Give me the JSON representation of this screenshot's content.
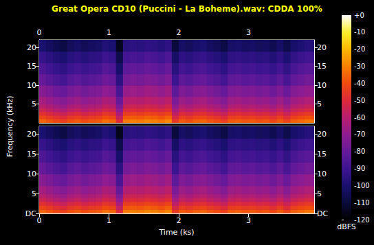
{
  "chart_data": {
    "type": "heatmap",
    "title": "Great Opera CD10 (Puccini - La Boheme).wav: CDDA 100%",
    "x_label": "Time (ks)",
    "y_label": "Frequency (kHz)",
    "xlim": [
      0,
      3.94
    ],
    "xticks": [
      0,
      1,
      2,
      3
    ],
    "ylim": [
      0,
      22.05
    ],
    "time_bins": [
      0,
      0.1,
      0.2,
      0.3,
      0.4,
      0.5,
      0.6,
      0.7,
      0.8,
      0.9,
      1.0,
      1.1,
      1.2,
      1.3,
      1.4,
      1.5,
      1.6,
      1.7,
      1.8,
      1.9,
      2.0,
      2.1,
      2.2,
      2.3,
      2.4,
      2.5,
      2.6,
      2.7,
      2.8,
      2.9,
      3.0,
      3.1,
      3.2,
      3.3,
      3.4,
      3.5,
      3.6,
      3.7,
      3.8,
      3.9,
      3.94
    ],
    "freq_bins": [
      0,
      1,
      2,
      3,
      4,
      5,
      7,
      10,
      13,
      16,
      19,
      22.05
    ],
    "panels": [
      {
        "yticks": [
          5,
          10,
          15,
          20
        ],
        "cells": [
          [
            -35,
            -38,
            -41,
            -43,
            -39,
            -37,
            -40,
            -38,
            -37,
            -33,
            -35,
            -50,
            -31,
            -30,
            -31,
            -29,
            -30,
            -32,
            -29,
            -45,
            -37,
            -39,
            -36,
            -35,
            -38,
            -40,
            -43,
            -37,
            -36,
            -38,
            -37,
            -39,
            -38,
            -41,
            -37,
            -42,
            -36,
            -34,
            -32,
            -33
          ],
          [
            -42,
            -45,
            -48,
            -50,
            -46,
            -44,
            -47,
            -45,
            -44,
            -40,
            -42,
            -57,
            -38,
            -37,
            -38,
            -36,
            -37,
            -39,
            -36,
            -52,
            -44,
            -46,
            -43,
            -42,
            -45,
            -47,
            -50,
            -44,
            -43,
            -45,
            -44,
            -46,
            -45,
            -48,
            -44,
            -49,
            -43,
            -41,
            -39,
            -40
          ],
          [
            -48,
            -51,
            -54,
            -56,
            -52,
            -50,
            -53,
            -51,
            -50,
            -46,
            -48,
            -63,
            -44,
            -43,
            -44,
            -42,
            -43,
            -45,
            -42,
            -58,
            -50,
            -52,
            -49,
            -48,
            -51,
            -53,
            -56,
            -50,
            -49,
            -51,
            -50,
            -52,
            -51,
            -54,
            -50,
            -55,
            -49,
            -47,
            -45,
            -46
          ],
          [
            -55,
            -58,
            -61,
            -63,
            -59,
            -57,
            -60,
            -58,
            -57,
            -53,
            -55,
            -70,
            -51,
            -50,
            -51,
            -49,
            -50,
            -52,
            -49,
            -65,
            -57,
            -59,
            -56,
            -55,
            -58,
            -60,
            -63,
            -57,
            -56,
            -58,
            -57,
            -59,
            -58,
            -61,
            -57,
            -62,
            -56,
            -54,
            -52,
            -53
          ],
          [
            -60,
            -63,
            -66,
            -68,
            -64,
            -62,
            -65,
            -63,
            -62,
            -58,
            -60,
            -75,
            -56,
            -55,
            -56,
            -54,
            -55,
            -57,
            -54,
            -70,
            -62,
            -64,
            -61,
            -60,
            -63,
            -65,
            -68,
            -62,
            -61,
            -63,
            -62,
            -64,
            -63,
            -66,
            -62,
            -67,
            -61,
            -59,
            -57,
            -58
          ],
          [
            -65,
            -68,
            -71,
            -73,
            -69,
            -67,
            -70,
            -68,
            -67,
            -63,
            -65,
            -80,
            -61,
            -60,
            -61,
            -59,
            -60,
            -62,
            -59,
            -75,
            -67,
            -69,
            -66,
            -65,
            -68,
            -70,
            -73,
            -67,
            -66,
            -68,
            -67,
            -69,
            -68,
            -71,
            -67,
            -72,
            -66,
            -64,
            -62,
            -63
          ],
          [
            -72,
            -75,
            -78,
            -80,
            -76,
            -74,
            -77,
            -75,
            -74,
            -70,
            -72,
            -87,
            -68,
            -67,
            -68,
            -66,
            -67,
            -69,
            -66,
            -82,
            -74,
            -76,
            -73,
            -72,
            -75,
            -77,
            -80,
            -74,
            -73,
            -75,
            -74,
            -76,
            -75,
            -78,
            -74,
            -79,
            -73,
            -71,
            -69,
            -70
          ],
          [
            -80,
            -83,
            -86,
            -88,
            -84,
            -82,
            -85,
            -83,
            -82,
            -78,
            -80,
            -95,
            -76,
            -75,
            -76,
            -74,
            -75,
            -77,
            -74,
            -90,
            -82,
            -84,
            -81,
            -80,
            -83,
            -85,
            -88,
            -82,
            -81,
            -83,
            -82,
            -84,
            -83,
            -86,
            -82,
            -87,
            -81,
            -79,
            -77,
            -78
          ],
          [
            -86,
            -89,
            -92,
            -94,
            -90,
            -88,
            -91,
            -89,
            -88,
            -84,
            -86,
            -101,
            -82,
            -81,
            -82,
            -80,
            -81,
            -83,
            -80,
            -96,
            -88,
            -90,
            -87,
            -86,
            -89,
            -91,
            -94,
            -88,
            -87,
            -89,
            -88,
            -90,
            -89,
            -92,
            -88,
            -93,
            -87,
            -85,
            -83,
            -84
          ],
          [
            -92,
            -95,
            -98,
            -100,
            -96,
            -94,
            -97,
            -95,
            -94,
            -90,
            -92,
            -107,
            -88,
            -87,
            -88,
            -86,
            -87,
            -89,
            -86,
            -102,
            -94,
            -96,
            -93,
            -92,
            -95,
            -97,
            -100,
            -94,
            -93,
            -95,
            -94,
            -96,
            -95,
            -98,
            -94,
            -99,
            -93,
            -91,
            -89,
            -90
          ],
          [
            -100,
            -103,
            -106,
            -108,
            -104,
            -102,
            -105,
            -103,
            -102,
            -98,
            -100,
            -115,
            -96,
            -95,
            -96,
            -94,
            -95,
            -97,
            -94,
            -110,
            -102,
            -104,
            -101,
            -100,
            -103,
            -105,
            -108,
            -102,
            -101,
            -103,
            -102,
            -104,
            -103,
            -106,
            -102,
            -107,
            -101,
            -99,
            -97,
            -98
          ]
        ]
      },
      {
        "yticks": [
          {
            "value": 0,
            "label": "DC"
          },
          5,
          10,
          15,
          20
        ],
        "cells": [
          [
            -35,
            -38,
            -41,
            -43,
            -39,
            -37,
            -40,
            -38,
            -37,
            -33,
            -35,
            -50,
            -31,
            -30,
            -31,
            -29,
            -30,
            -32,
            -29,
            -45,
            -37,
            -39,
            -36,
            -35,
            -38,
            -40,
            -43,
            -37,
            -36,
            -38,
            -37,
            -39,
            -38,
            -41,
            -37,
            -42,
            -36,
            -34,
            -32,
            -33
          ],
          [
            -42,
            -45,
            -48,
            -50,
            -46,
            -44,
            -47,
            -45,
            -44,
            -40,
            -42,
            -57,
            -38,
            -37,
            -38,
            -36,
            -37,
            -39,
            -36,
            -52,
            -44,
            -46,
            -43,
            -42,
            -45,
            -47,
            -50,
            -44,
            -43,
            -45,
            -44,
            -46,
            -45,
            -48,
            -44,
            -49,
            -43,
            -41,
            -39,
            -40
          ],
          [
            -48,
            -51,
            -54,
            -56,
            -52,
            -50,
            -53,
            -51,
            -50,
            -46,
            -48,
            -63,
            -44,
            -43,
            -44,
            -42,
            -43,
            -45,
            -42,
            -58,
            -50,
            -52,
            -49,
            -48,
            -51,
            -53,
            -56,
            -50,
            -49,
            -51,
            -50,
            -52,
            -51,
            -54,
            -50,
            -55,
            -49,
            -47,
            -45,
            -46
          ],
          [
            -55,
            -58,
            -61,
            -63,
            -59,
            -57,
            -60,
            -58,
            -57,
            -53,
            -55,
            -70,
            -51,
            -50,
            -51,
            -49,
            -50,
            -52,
            -49,
            -65,
            -57,
            -59,
            -56,
            -55,
            -58,
            -60,
            -63,
            -57,
            -56,
            -58,
            -57,
            -59,
            -58,
            -61,
            -57,
            -62,
            -56,
            -54,
            -52,
            -53
          ],
          [
            -60,
            -63,
            -66,
            -68,
            -64,
            -62,
            -65,
            -63,
            -62,
            -58,
            -60,
            -75,
            -56,
            -55,
            -56,
            -54,
            -55,
            -57,
            -54,
            -70,
            -62,
            -64,
            -61,
            -60,
            -63,
            -65,
            -68,
            -62,
            -61,
            -63,
            -62,
            -64,
            -63,
            -66,
            -62,
            -67,
            -61,
            -59,
            -57,
            -58
          ],
          [
            -65,
            -68,
            -71,
            -73,
            -69,
            -67,
            -70,
            -68,
            -67,
            -63,
            -65,
            -80,
            -61,
            -60,
            -61,
            -59,
            -60,
            -62,
            -59,
            -75,
            -67,
            -69,
            -66,
            -65,
            -68,
            -70,
            -73,
            -67,
            -66,
            -68,
            -67,
            -69,
            -68,
            -71,
            -67,
            -72,
            -66,
            -64,
            -62,
            -63
          ],
          [
            -72,
            -75,
            -78,
            -80,
            -76,
            -74,
            -77,
            -75,
            -74,
            -70,
            -72,
            -87,
            -68,
            -67,
            -68,
            -66,
            -67,
            -69,
            -66,
            -82,
            -74,
            -76,
            -73,
            -72,
            -75,
            -77,
            -80,
            -74,
            -73,
            -75,
            -74,
            -76,
            -75,
            -78,
            -74,
            -79,
            -73,
            -71,
            -69,
            -70
          ],
          [
            -80,
            -83,
            -86,
            -88,
            -84,
            -82,
            -85,
            -83,
            -82,
            -78,
            -80,
            -95,
            -76,
            -75,
            -76,
            -74,
            -75,
            -77,
            -74,
            -90,
            -82,
            -84,
            -81,
            -80,
            -83,
            -85,
            -88,
            -82,
            -81,
            -83,
            -82,
            -84,
            -83,
            -86,
            -82,
            -87,
            -81,
            -79,
            -77,
            -78
          ],
          [
            -86,
            -89,
            -92,
            -94,
            -90,
            -88,
            -91,
            -89,
            -88,
            -84,
            -86,
            -101,
            -82,
            -81,
            -82,
            -80,
            -81,
            -83,
            -80,
            -96,
            -88,
            -90,
            -87,
            -86,
            -89,
            -91,
            -94,
            -88,
            -87,
            -89,
            -88,
            -90,
            -89,
            -92,
            -88,
            -93,
            -87,
            -85,
            -83,
            -84
          ],
          [
            -92,
            -95,
            -98,
            -100,
            -96,
            -94,
            -97,
            -95,
            -94,
            -90,
            -92,
            -107,
            -88,
            -87,
            -88,
            -86,
            -87,
            -89,
            -86,
            -102,
            -94,
            -96,
            -93,
            -92,
            -95,
            -97,
            -100,
            -94,
            -93,
            -95,
            -94,
            -96,
            -95,
            -98,
            -94,
            -99,
            -93,
            -91,
            -89,
            -90
          ],
          [
            -100,
            -103,
            -106,
            -108,
            -104,
            -102,
            -105,
            -103,
            -102,
            -98,
            -100,
            -115,
            -96,
            -95,
            -96,
            -94,
            -95,
            -97,
            -94,
            -110,
            -102,
            -104,
            -101,
            -100,
            -103,
            -105,
            -108,
            -102,
            -101,
            -103,
            -102,
            -104,
            -103,
            -106,
            -102,
            -107,
            -101,
            -99,
            -97,
            -98
          ]
        ]
      }
    ],
    "colorbar": {
      "label": "dBFS",
      "range": [
        -120,
        0
      ],
      "ticks": [
        {
          "value": 0,
          "label": "+0"
        },
        -10,
        -20,
        -30,
        -40,
        -50,
        -60,
        -70,
        -80,
        -90,
        -100,
        -110,
        -120
      ]
    }
  }
}
